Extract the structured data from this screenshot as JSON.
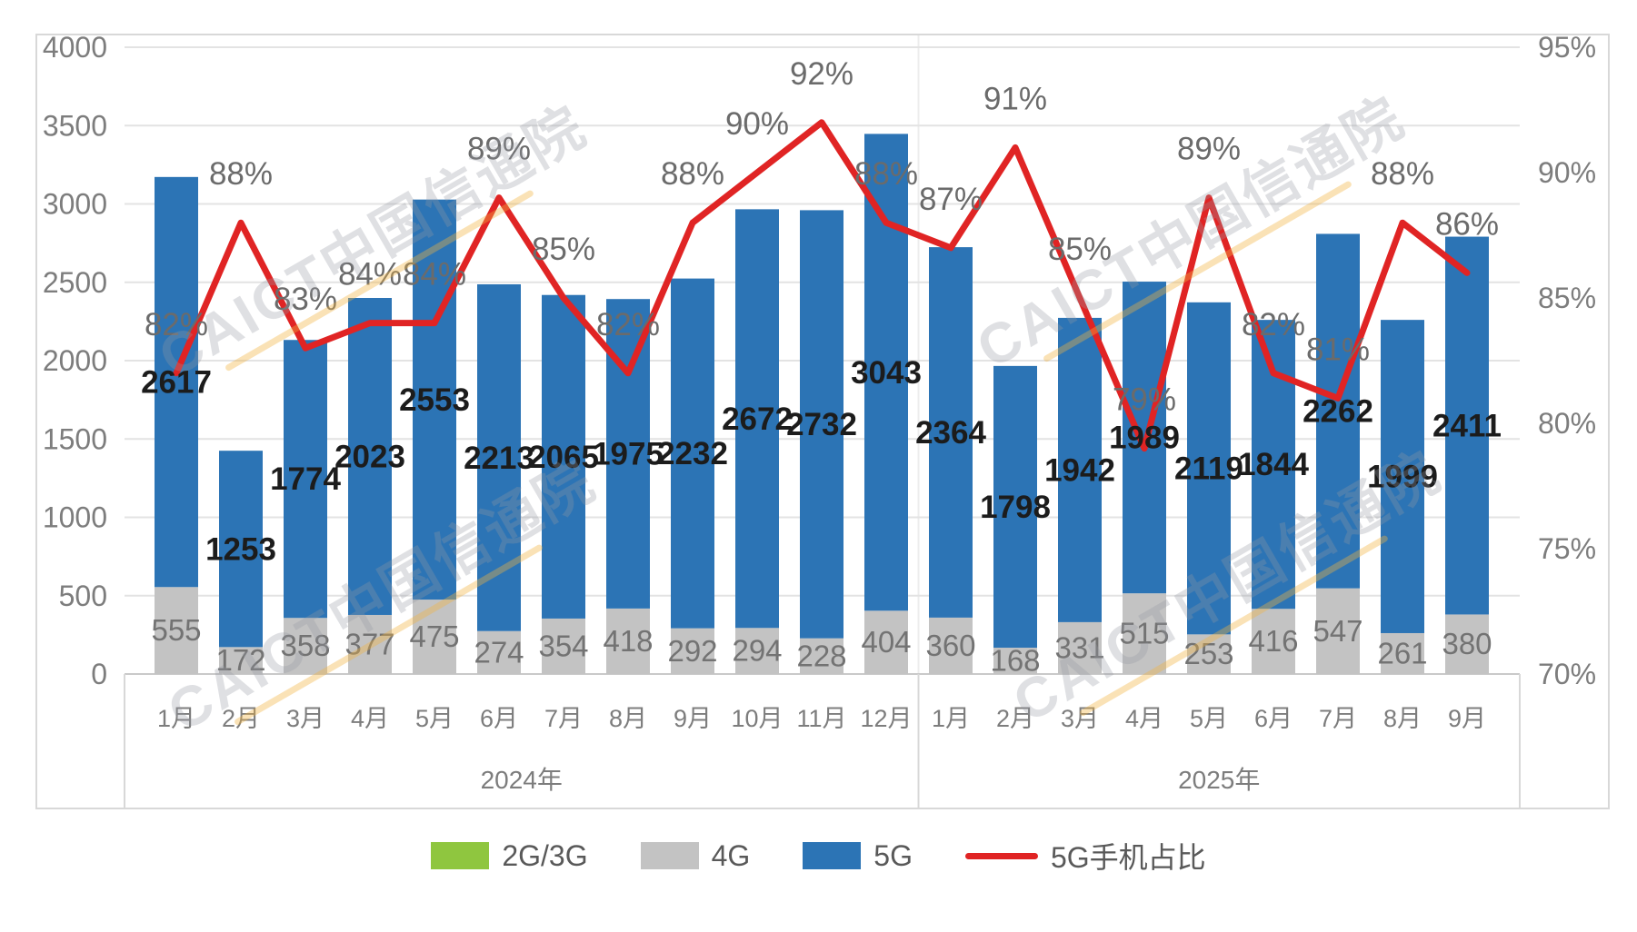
{
  "watermark": {
    "text": "CAICT中国信通院"
  },
  "chart_data": {
    "type": "bar",
    "subtype": "stacked-bar-with-line",
    "title": "",
    "categories": [
      "1月",
      "2月",
      "3月",
      "4月",
      "5月",
      "6月",
      "7月",
      "8月",
      "9月",
      "10月",
      "11月",
      "12月",
      "1月",
      "2月",
      "3月",
      "4月",
      "5月",
      "6月",
      "7月",
      "8月",
      "9月"
    ],
    "groups": [
      {
        "label": "2024年",
        "span": 12
      },
      {
        "label": "2025年",
        "span": 9
      }
    ],
    "series": [
      {
        "name": "2G/3G",
        "color": "#8FC63F",
        "label_color": "#767676",
        "values": [
          0,
          0,
          0,
          0,
          0,
          0,
          0,
          0,
          0,
          0,
          0,
          0,
          0,
          0,
          0,
          0,
          0,
          0,
          0,
          0,
          0
        ]
      },
      {
        "name": "4G",
        "color": "#C3C3C3",
        "label_color": "#737373",
        "values": [
          555,
          172,
          358,
          377,
          475,
          274,
          354,
          418,
          292,
          294,
          228,
          404,
          360,
          168,
          331,
          515,
          253,
          416,
          547,
          261,
          380
        ]
      },
      {
        "name": "5G",
        "color": "#2C74B5",
        "label_color": "#1C1C1C",
        "values": [
          2617,
          1253,
          1774,
          2023,
          2553,
          2213,
          2065,
          1975,
          2232,
          2672,
          2732,
          3043,
          2364,
          1798,
          1942,
          1989,
          2119,
          1844,
          2262,
          1999,
          2411
        ]
      }
    ],
    "line": {
      "name": "5G手机占比",
      "color": "#E02424",
      "values_pct": [
        82,
        88,
        83,
        84,
        84,
        89,
        85,
        82,
        88,
        90,
        92,
        88,
        87,
        91,
        85,
        79,
        89,
        82,
        81,
        88,
        86
      ]
    },
    "left_axis": {
      "min": 0,
      "max": 4000,
      "ticks": [
        0,
        500,
        1000,
        1500,
        2000,
        2500,
        3000,
        3500,
        4000
      ]
    },
    "right_axis": {
      "min": 70,
      "max": 95,
      "ticks": [
        "70%",
        "75%",
        "80%",
        "85%",
        "90%",
        "95%"
      ]
    },
    "legend_position": "bottom",
    "grid": true
  }
}
